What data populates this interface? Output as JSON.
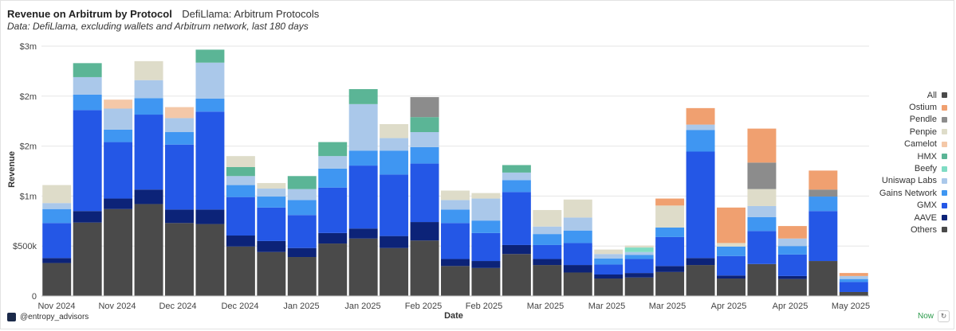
{
  "header": {
    "title": "Revenue on Arbitrum by Protocol",
    "source": "DefiLlama: Arbitrum Protocols",
    "subtitle": "Data: DefiLlama, excluding wallets and Arbitrum network, last 180 days"
  },
  "footer": {
    "handle": "@entropy_advisors",
    "status": "Now",
    "status_color": "#2a9a4a"
  },
  "chart_data": {
    "type": "bar",
    "stacked": true,
    "xlabel": "Date",
    "ylabel": "Revenue",
    "ylim": [
      0,
      2500000
    ],
    "y_ticks": [
      {
        "value": 0,
        "label": "0"
      },
      {
        "value": 500000,
        "label": "$500k"
      },
      {
        "value": 1000000,
        "label": "$1m"
      },
      {
        "value": 1500000,
        "label": "$2m"
      },
      {
        "value": 2000000,
        "label": "$2m"
      },
      {
        "value": 2500000,
        "label": "$3m"
      }
    ],
    "x_tick_labels": [
      "Nov 2024",
      "Nov 2024",
      "Dec 2024",
      "Dec 2024",
      "Jan 2025",
      "Jan 2025",
      "Feb 2025",
      "Feb 2025",
      "Mar 2025",
      "Mar 2025",
      "Mar 2025",
      "Apr 2025",
      "Apr 2025",
      "May 2025"
    ],
    "legend_position": "right",
    "legend": [
      "All",
      "Ostium",
      "Pendle",
      "Penpie",
      "Camelot",
      "HMX",
      "Beefy",
      "Uniswap Labs",
      "Gains Network",
      "GMX",
      "AAVE",
      "Others"
    ],
    "legend_colors": {
      "All": "#4a4a4a",
      "Ostium": "#f0a070",
      "Pendle": "#8c8c8c",
      "Penpie": "#dedcc9",
      "Camelot": "#f4c8a8",
      "HMX": "#5bb596",
      "Beefy": "#7fdcc4",
      "Uniswap Labs": "#aac8ea",
      "Gains Network": "#3f96f2",
      "GMX": "#2457e6",
      "AAVE": "#0c2378",
      "Others": "#4a4a4a"
    },
    "series": [
      {
        "name": "Others",
        "color": "#4a4a4a",
        "values": [
          330000,
          735000,
          870000,
          920000,
          730000,
          720000,
          495000,
          440000,
          390000,
          525000,
          575000,
          480000,
          555000,
          300000,
          280000,
          420000,
          310000,
          235000,
          175000,
          185000,
          240000,
          310000,
          175000,
          320000,
          170000,
          350000,
          40000
        ]
      },
      {
        "name": "AAVE",
        "color": "#0c2378",
        "values": [
          50000,
          115000,
          105000,
          145000,
          135000,
          145000,
          110000,
          110000,
          90000,
          105000,
          100000,
          120000,
          185000,
          70000,
          70000,
          90000,
          60000,
          75000,
          40000,
          45000,
          60000,
          70000,
          30000,
          0,
          30000,
          0,
          0
        ]
      },
      {
        "name": "GMX",
        "color": "#2457e6",
        "values": [
          350000,
          1010000,
          565000,
          750000,
          650000,
          980000,
          385000,
          335000,
          330000,
          455000,
          630000,
          615000,
          585000,
          360000,
          280000,
          530000,
          140000,
          220000,
          100000,
          140000,
          290000,
          1065000,
          195000,
          330000,
          215000,
          500000,
          100000
        ]
      },
      {
        "name": "Gains Network",
        "color": "#3f96f2",
        "values": [
          140000,
          155000,
          125000,
          165000,
          125000,
          130000,
          120000,
          110000,
          150000,
          190000,
          150000,
          240000,
          165000,
          135000,
          125000,
          120000,
          110000,
          125000,
          60000,
          40000,
          95000,
          215000,
          95000,
          140000,
          85000,
          145000,
          30000
        ]
      },
      {
        "name": "Uniswap Labs",
        "color": "#aac8ea",
        "values": [
          60000,
          175000,
          210000,
          180000,
          140000,
          360000,
          90000,
          80000,
          110000,
          125000,
          465000,
          125000,
          150000,
          95000,
          220000,
          75000,
          75000,
          130000,
          45000,
          30000,
          0,
          55000,
          0,
          110000,
          75000,
          0,
          30000
        ]
      },
      {
        "name": "Beefy",
        "color": "#7fdcc4",
        "values": [
          0,
          0,
          0,
          0,
          0,
          0,
          0,
          0,
          0,
          0,
          0,
          0,
          0,
          0,
          0,
          0,
          0,
          0,
          0,
          45000,
          0,
          0,
          0,
          0,
          0,
          0,
          0
        ]
      },
      {
        "name": "HMX",
        "color": "#5bb596",
        "values": [
          0,
          140000,
          0,
          0,
          0,
          130000,
          90000,
          0,
          130000,
          140000,
          150000,
          0,
          150000,
          0,
          0,
          75000,
          0,
          0,
          0,
          0,
          0,
          0,
          0,
          0,
          0,
          0,
          0
        ]
      },
      {
        "name": "Camelot",
        "color": "#f4c8a8",
        "values": [
          0,
          0,
          90000,
          0,
          110000,
          0,
          0,
          0,
          0,
          0,
          0,
          0,
          0,
          0,
          0,
          0,
          0,
          0,
          0,
          0,
          0,
          0,
          0,
          0,
          0,
          0,
          0
        ]
      },
      {
        "name": "Penpie",
        "color": "#dedcc9",
        "values": [
          180000,
          0,
          0,
          190000,
          0,
          0,
          110000,
          55000,
          0,
          0,
          0,
          140000,
          0,
          95000,
          55000,
          0,
          165000,
          180000,
          45000,
          20000,
          220000,
          0,
          35000,
          170000,
          0,
          0,
          0
        ]
      },
      {
        "name": "Pendle",
        "color": "#8c8c8c",
        "values": [
          0,
          0,
          0,
          0,
          0,
          0,
          0,
          0,
          0,
          0,
          0,
          0,
          200000,
          0,
          0,
          0,
          0,
          0,
          0,
          0,
          0,
          0,
          0,
          265000,
          0,
          70000,
          0
        ]
      },
      {
        "name": "Ostium",
        "color": "#f0a070",
        "values": [
          0,
          0,
          0,
          0,
          0,
          0,
          0,
          0,
          0,
          0,
          0,
          0,
          0,
          0,
          0,
          0,
          0,
          0,
          0,
          0,
          70000,
          165000,
          355000,
          340000,
          125000,
          190000,
          30000
        ]
      }
    ]
  }
}
